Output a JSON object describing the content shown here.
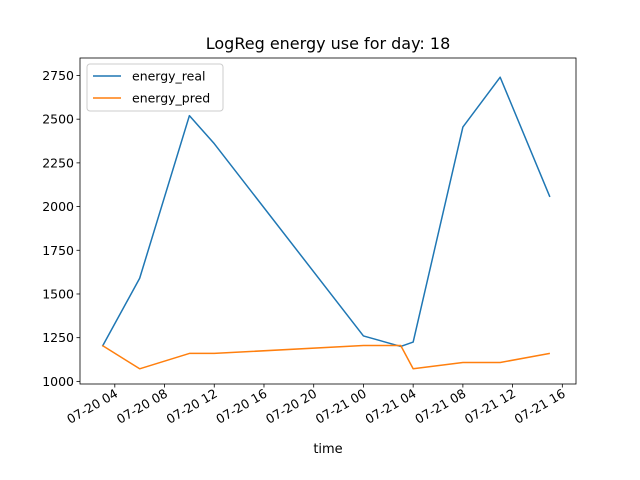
{
  "chart_data": {
    "type": "line",
    "title": "LogReg energy use for day: 18",
    "xlabel": "time",
    "ylabel": "",
    "x_tick_labels": [
      "07-20 04",
      "07-20 08",
      "07-20 12",
      "07-20 16",
      "07-20 20",
      "07-21 00",
      "07-21 04",
      "07-21 08",
      "07-21 12",
      "07-21 16"
    ],
    "x_tick_hours": [
      4,
      8,
      12,
      16,
      20,
      24,
      28,
      32,
      36,
      40
    ],
    "xlim_hours": [
      1.2,
      41.1
    ],
    "y_ticks": [
      1000,
      1250,
      1500,
      1750,
      2000,
      2250,
      2500,
      2750
    ],
    "ylim": [
      985,
      2850
    ],
    "legend_position": "upper-left",
    "grid": false,
    "series": [
      {
        "name": "energy_real",
        "color": "#1f77b4",
        "x_hours": [
          3,
          6,
          10,
          12,
          24,
          27,
          28,
          32,
          35,
          39
        ],
        "values": [
          1200,
          1590,
          2520,
          2360,
          1260,
          1200,
          1225,
          2455,
          2740,
          2055
        ]
      },
      {
        "name": "energy_pred",
        "color": "#ff7f0e",
        "x_hours": [
          3,
          6,
          10,
          12,
          24,
          27,
          28,
          32,
          35,
          39
        ],
        "values": [
          1205,
          1072,
          1160,
          1160,
          1205,
          1205,
          1072,
          1108,
          1108,
          1160
        ]
      }
    ]
  }
}
